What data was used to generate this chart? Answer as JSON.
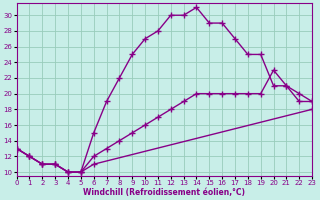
{
  "xlabel": "Windchill (Refroidissement éolien,°C)",
  "bg_color": "#c8eee8",
  "line_color": "#880088",
  "grid_color": "#99ccbb",
  "xlim": [
    0,
    23
  ],
  "ylim": [
    9.5,
    31.5
  ],
  "yticks": [
    10,
    12,
    14,
    16,
    18,
    20,
    22,
    24,
    26,
    28,
    30
  ],
  "xticks": [
    0,
    1,
    2,
    3,
    4,
    5,
    6,
    7,
    8,
    9,
    10,
    11,
    12,
    13,
    14,
    15,
    16,
    17,
    18,
    19,
    20,
    21,
    22,
    23
  ],
  "curve1_x": [
    0,
    1,
    2,
    3,
    4,
    5,
    6,
    7,
    8,
    9,
    10,
    11,
    12,
    13,
    14,
    15,
    16,
    17,
    18,
    19,
    20,
    21,
    22,
    23
  ],
  "curve1_y": [
    13,
    12,
    11,
    11,
    10,
    10,
    15,
    19,
    22,
    25,
    27,
    28,
    30,
    30,
    31,
    29,
    29,
    27,
    25,
    25,
    21,
    21,
    19,
    19
  ],
  "curve2_x": [
    0,
    1,
    2,
    3,
    4,
    5,
    6,
    7,
    8,
    9,
    10,
    11,
    12,
    13,
    14,
    15,
    16,
    17,
    18,
    19,
    20,
    21,
    22,
    23
  ],
  "curve2_y": [
    13,
    12,
    11,
    11,
    10,
    10,
    12,
    13,
    14,
    15,
    16,
    17,
    18,
    19,
    20,
    20,
    20,
    20,
    20,
    20,
    23,
    21,
    20,
    19
  ],
  "curve3_x": [
    0,
    1,
    2,
    3,
    4,
    5,
    6,
    23
  ],
  "curve3_y": [
    13,
    12,
    11,
    11,
    10,
    10,
    11,
    18
  ],
  "linewidth": 1.0,
  "markersize": 2.5
}
